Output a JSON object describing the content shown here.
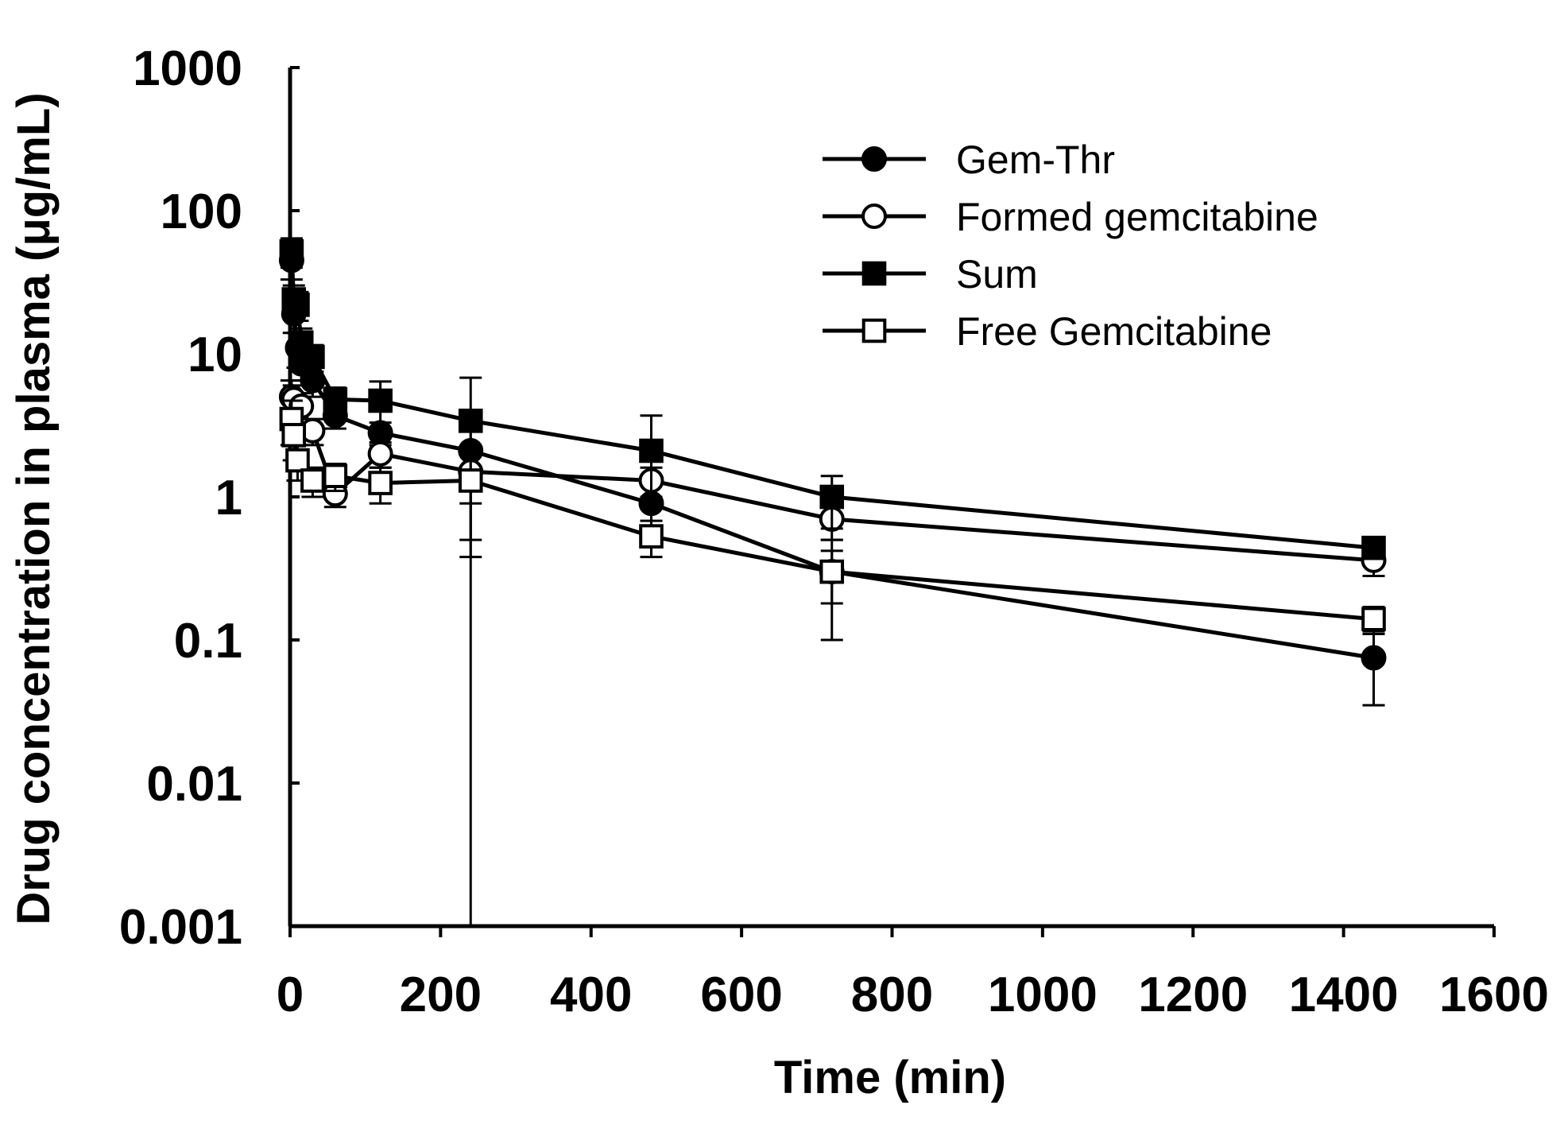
{
  "chart_data": {
    "type": "line",
    "title": "",
    "xlabel": "Time (min)",
    "ylabel": "Drug concentration in plasma (μg/mL)",
    "yscale": "log",
    "xlim": [
      0,
      1600
    ],
    "ylim": [
      0.001,
      1000
    ],
    "xticks": [
      0,
      200,
      400,
      600,
      800,
      1000,
      1200,
      1400,
      1600
    ],
    "yticks": [
      {
        "value": 0.001,
        "label": "0.001"
      },
      {
        "value": 0.01,
        "label": "0.01"
      },
      {
        "value": 0.1,
        "label": "0.1"
      },
      {
        "value": 1,
        "label": "1"
      },
      {
        "value": 10,
        "label": "10"
      },
      {
        "value": 100,
        "label": "100"
      },
      {
        "value": 1000,
        "label": "1000"
      }
    ],
    "legend_position": "top-right",
    "series": [
      {
        "name": "Gem-Thr",
        "marker": "circle-filled",
        "points": [
          {
            "x": 2,
            "y": 45,
            "err": 12
          },
          {
            "x": 5,
            "y": 19,
            "err": 5
          },
          {
            "x": 10,
            "y": 11,
            "err": 3
          },
          {
            "x": 15,
            "y": 8.5,
            "err": 2
          },
          {
            "x": 30,
            "y": 6.5,
            "err": 1.5
          },
          {
            "x": 60,
            "y": 3.7,
            "err": 0.7
          },
          {
            "x": 120,
            "y": 2.8,
            "err": 0.5
          },
          {
            "x": 240,
            "y": 2.1,
            "err": 1.6
          },
          {
            "x": 480,
            "y": 0.9,
            "err": 0.3
          },
          {
            "x": 720,
            "y": 0.3,
            "err": 0.12
          },
          {
            "x": 1440,
            "y": 0.075,
            "err": 0.04
          }
        ]
      },
      {
        "name": "Formed gemcitabine",
        "marker": "circle-open",
        "points": [
          {
            "x": 2,
            "y": 5,
            "err": 1.5
          },
          {
            "x": 5,
            "y": 4.8,
            "err": 1.2
          },
          {
            "x": 15,
            "y": 4.3,
            "err": 1
          },
          {
            "x": 30,
            "y": 2.9,
            "err": 0.6
          },
          {
            "x": 60,
            "y": 1.05,
            "err": 0.2
          },
          {
            "x": 120,
            "y": 2.0,
            "err": 0.4
          },
          {
            "x": 240,
            "y": 1.5,
            "err": 0.6
          },
          {
            "x": 480,
            "y": 1.3,
            "err": 0.3
          },
          {
            "x": 720,
            "y": 0.7,
            "err": 0.2
          },
          {
            "x": 1440,
            "y": 0.36,
            "err": 0.08
          }
        ]
      },
      {
        "name": "Sum",
        "marker": "square-filled",
        "points": [
          {
            "x": 2,
            "y": 52,
            "err": 12
          },
          {
            "x": 5,
            "y": 24,
            "err": 6
          },
          {
            "x": 10,
            "y": 22,
            "err": 5
          },
          {
            "x": 15,
            "y": 12,
            "err": 3
          },
          {
            "x": 30,
            "y": 9.5,
            "err": 2
          },
          {
            "x": 60,
            "y": 4.8,
            "err": 1
          },
          {
            "x": 120,
            "y": 4.7,
            "err": 1.7
          },
          {
            "x": 240,
            "y": 3.4,
            "err": 3.4
          },
          {
            "x": 480,
            "y": 2.1,
            "err": 1.6
          },
          {
            "x": 720,
            "y": 1.0,
            "err": 0.4
          },
          {
            "x": 1440,
            "y": 0.44,
            "err": 0.05
          }
        ]
      },
      {
        "name": "Free Gemcitabine",
        "marker": "square-open",
        "points": [
          {
            "x": 2,
            "y": 3.5,
            "err": 1.2
          },
          {
            "x": 5,
            "y": 2.7,
            "err": 0.9
          },
          {
            "x": 10,
            "y": 1.8,
            "err": 0.5
          },
          {
            "x": 30,
            "y": 1.3,
            "err": 0.3
          },
          {
            "x": 60,
            "y": 1.4,
            "err": 0.3
          },
          {
            "x": 120,
            "y": 1.25,
            "err": 0.35
          },
          {
            "x": 240,
            "y": 1.3,
            "err": 0.92
          },
          {
            "x": 480,
            "y": 0.53,
            "err": 0.15
          },
          {
            "x": 720,
            "y": 0.3,
            "err": 0.2
          },
          {
            "x": 1440,
            "y": 0.14,
            "err": 0.03
          }
        ]
      }
    ]
  }
}
